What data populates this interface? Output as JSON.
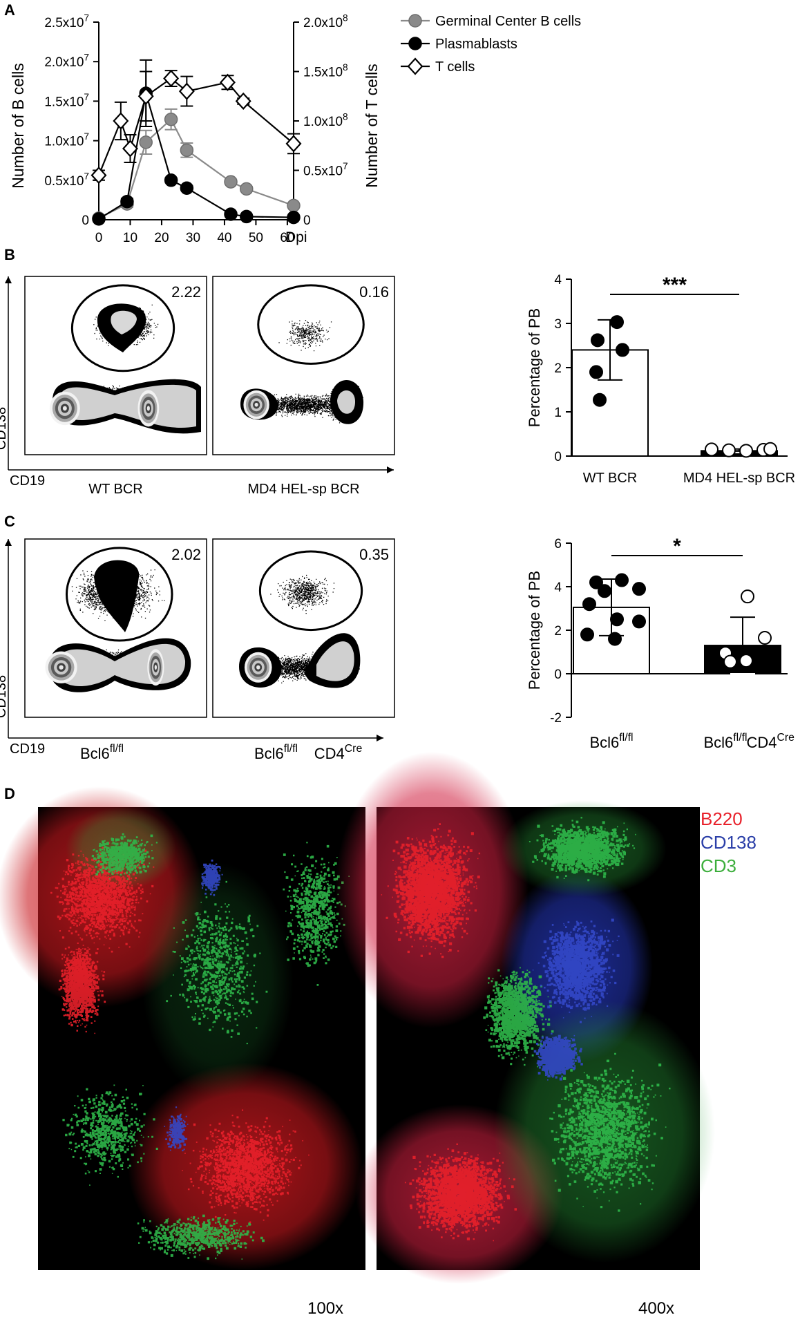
{
  "panels": {
    "a": "A",
    "b": "B",
    "c": "C",
    "d": "D"
  },
  "chart_data": [
    {
      "type": "line",
      "panel": "A",
      "xlabel": "Dpi",
      "ylabel": "Number of B cells",
      "y2label": "Number of T cells",
      "xlim": [
        0,
        60
      ],
      "ylim": [
        0,
        25000000
      ],
      "y2lim": [
        0,
        200000000
      ],
      "xticks": [
        "0",
        "10",
        "20",
        "30",
        "40",
        "50",
        "60"
      ],
      "yticks": [
        {
          "base": "0",
          "exp": ""
        },
        {
          "base": "0.5x10",
          "exp": "7"
        },
        {
          "base": "1.0x10",
          "exp": "7"
        },
        {
          "base": "1.5x10",
          "exp": "7"
        },
        {
          "base": "2.0x10",
          "exp": "7"
        },
        {
          "base": "2.5x10",
          "exp": "7"
        }
      ],
      "y2ticks": [
        {
          "base": "0",
          "exp": ""
        },
        {
          "base": "0.5x10",
          "exp": "7"
        },
        {
          "base": "1.0x10",
          "exp": "8"
        },
        {
          "base": "1.5x10",
          "exp": "8"
        },
        {
          "base": "2.0x10",
          "exp": "8"
        }
      ],
      "legend_position": "top-right",
      "series": [
        {
          "name": "Germinal Center B cells",
          "axis": "left",
          "color": "#8a8a8a",
          "marker": "circle",
          "x": [
            0,
            9,
            15,
            23,
            28,
            42,
            47,
            62
          ],
          "y": [
            200000,
            2000000,
            9800000,
            12700000,
            8800000,
            4800000,
            3900000,
            1800000
          ],
          "err": [
            0,
            400000,
            1500000,
            1300000,
            900000,
            300000,
            300000,
            200000
          ]
        },
        {
          "name": "Plasmablasts",
          "axis": "left",
          "color": "#000000",
          "marker": "circle",
          "x": [
            0,
            9,
            15,
            23,
            28,
            42,
            47,
            62
          ],
          "y": [
            100000,
            2300000,
            16000000,
            5000000,
            4000000,
            700000,
            400000,
            300000
          ],
          "err": [
            0,
            400000,
            4200000,
            300000,
            300000,
            100000,
            100000,
            100000
          ]
        },
        {
          "name": "T cells",
          "axis": "right",
          "color": "#ffffff",
          "marker": "diamond",
          "x": [
            0,
            7,
            10,
            15,
            23,
            28,
            41,
            46,
            62
          ],
          "y": [
            45000000,
            100000000,
            72000000,
            125000000,
            143000000,
            130000000,
            139000000,
            120000000,
            77000000
          ],
          "err": [
            5000000,
            19000000,
            14000000,
            25000000,
            8000000,
            15000000,
            7000000,
            3000000,
            10000000
          ]
        }
      ]
    },
    {
      "type": "scatter",
      "panel": "B-flow",
      "xlabel": "CD19",
      "ylabel": "CD138",
      "plots": [
        {
          "label": "WT BCR",
          "gate_value": "2.22"
        },
        {
          "label": "MD4 HEL-sp BCR",
          "gate_value": "0.16"
        }
      ]
    },
    {
      "type": "bar",
      "panel": "B-bar",
      "ylabel": "Percentage of PB",
      "ylim": [
        0,
        4
      ],
      "yticks": [
        "0",
        "1",
        "2",
        "3",
        "4"
      ],
      "categories": [
        "WT BCR",
        "MD4 HEL-sp BCR"
      ],
      "values": [
        2.4,
        0.12
      ],
      "sd": [
        0.68,
        0.04
      ],
      "fill": [
        "#ffffff",
        "#000000"
      ],
      "points": [
        [
          3.03,
          2.62,
          2.4,
          1.9,
          1.27
        ],
        [
          0.15,
          0.13,
          0.12,
          0.14,
          0.16
        ]
      ],
      "significance": "***"
    },
    {
      "type": "scatter",
      "panel": "C-flow",
      "xlabel": "CD19",
      "ylabel": "CD138",
      "plots": [
        {
          "label": "Bcl6",
          "label_sup": "fl/fl",
          "label2": "",
          "label2_sup": "",
          "gate_value": "2.02"
        },
        {
          "label": "Bcl6",
          "label_sup": "fl/fl",
          "label2": "CD4",
          "label2_sup": "Cre",
          "gate_value": "0.35"
        }
      ]
    },
    {
      "type": "bar",
      "panel": "C-bar",
      "ylabel": "Percentage of PB",
      "ylim": [
        -2,
        6
      ],
      "yticks": [
        "-2",
        "0",
        "2",
        "4",
        "6"
      ],
      "categories": [
        {
          "base": "Bcl6",
          "sup": "fl/fl",
          "base2": "",
          "sup2": ""
        },
        {
          "base": "Bcl6",
          "sup": "fl/fl",
          "base2": "CD4",
          "sup2": "Cre"
        }
      ],
      "values": [
        3.05,
        1.3
      ],
      "sd": [
        1.3,
        1.3
      ],
      "fill": [
        "#ffffff",
        "#000000"
      ],
      "points": [
        [
          4.3,
          4.2,
          3.9,
          3.8,
          3.2,
          2.5,
          2.4,
          1.8,
          1.6
        ],
        [
          3.55,
          1.65,
          0.95,
          0.6,
          0.55
        ]
      ],
      "significance": "*"
    }
  ],
  "micrographs": {
    "left_mag": "100x",
    "right_mag": "400x",
    "stains": [
      {
        "name": "B220",
        "color": "#e8202a"
      },
      {
        "name": "CD138",
        "color": "#2b3fa8"
      },
      {
        "name": "CD3",
        "color": "#3cae3c"
      }
    ]
  }
}
